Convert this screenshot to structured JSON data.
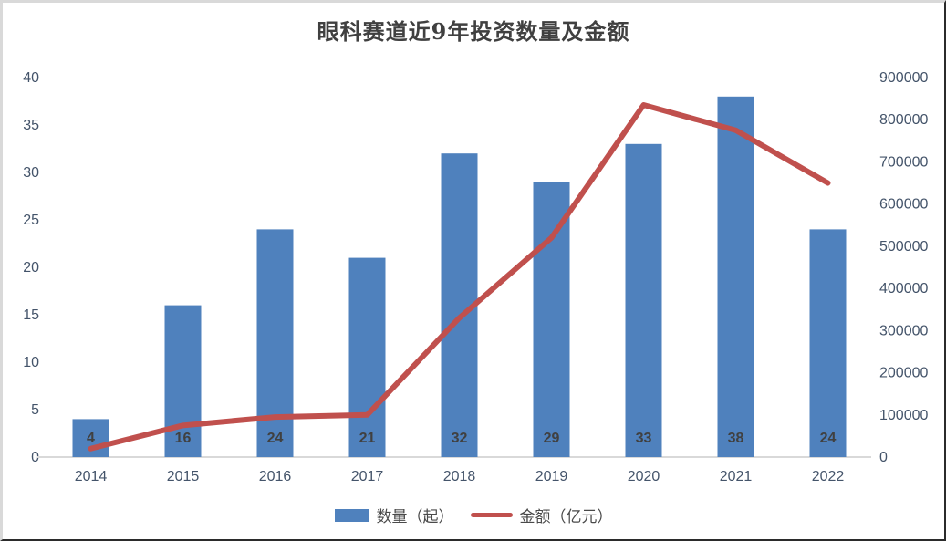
{
  "title": "眼科赛道近9年投资数量及金额",
  "colors": {
    "bar": "#4f81bd",
    "line": "#c0504d",
    "title_text": "#404040",
    "axis_text": "#44546a",
    "legend_text": "#4a4a4a",
    "bar_label_text": "#404040",
    "axis_line": "#d9d9d9"
  },
  "chart_data": {
    "type": "bar",
    "subtype": "combo-bar-line-dual-axis",
    "title": "眼科赛道近9年投资数量及金额",
    "categories": [
      "2014",
      "2015",
      "2016",
      "2017",
      "2018",
      "2019",
      "2020",
      "2021",
      "2022"
    ],
    "series": [
      {
        "name": "数量（起）",
        "type": "bar",
        "axis": "left",
        "color": "#4f81bd",
        "values": [
          4,
          16,
          24,
          21,
          32,
          29,
          33,
          38,
          24
        ]
      },
      {
        "name": "金额（亿元）",
        "type": "line",
        "axis": "right",
        "color": "#c0504d",
        "values": [
          20000,
          75000,
          95000,
          100000,
          330000,
          520000,
          835000,
          775000,
          650000
        ]
      }
    ],
    "left_axis": {
      "min": 0,
      "max": 40,
      "step": 5,
      "tick_labels": [
        "0",
        "5",
        "10",
        "15",
        "20",
        "25",
        "30",
        "35",
        "40"
      ]
    },
    "right_axis": {
      "min": 0,
      "max": 900000,
      "step": 100000,
      "tick_labels": [
        "0",
        "100000",
        "200000",
        "300000",
        "400000",
        "500000",
        "600000",
        "700000",
        "800000",
        "900000"
      ]
    },
    "legend": {
      "position": "bottom",
      "items": [
        "数量（起）",
        "金额（亿元）"
      ]
    },
    "grid": false,
    "bar_value_labels_shown": true
  }
}
